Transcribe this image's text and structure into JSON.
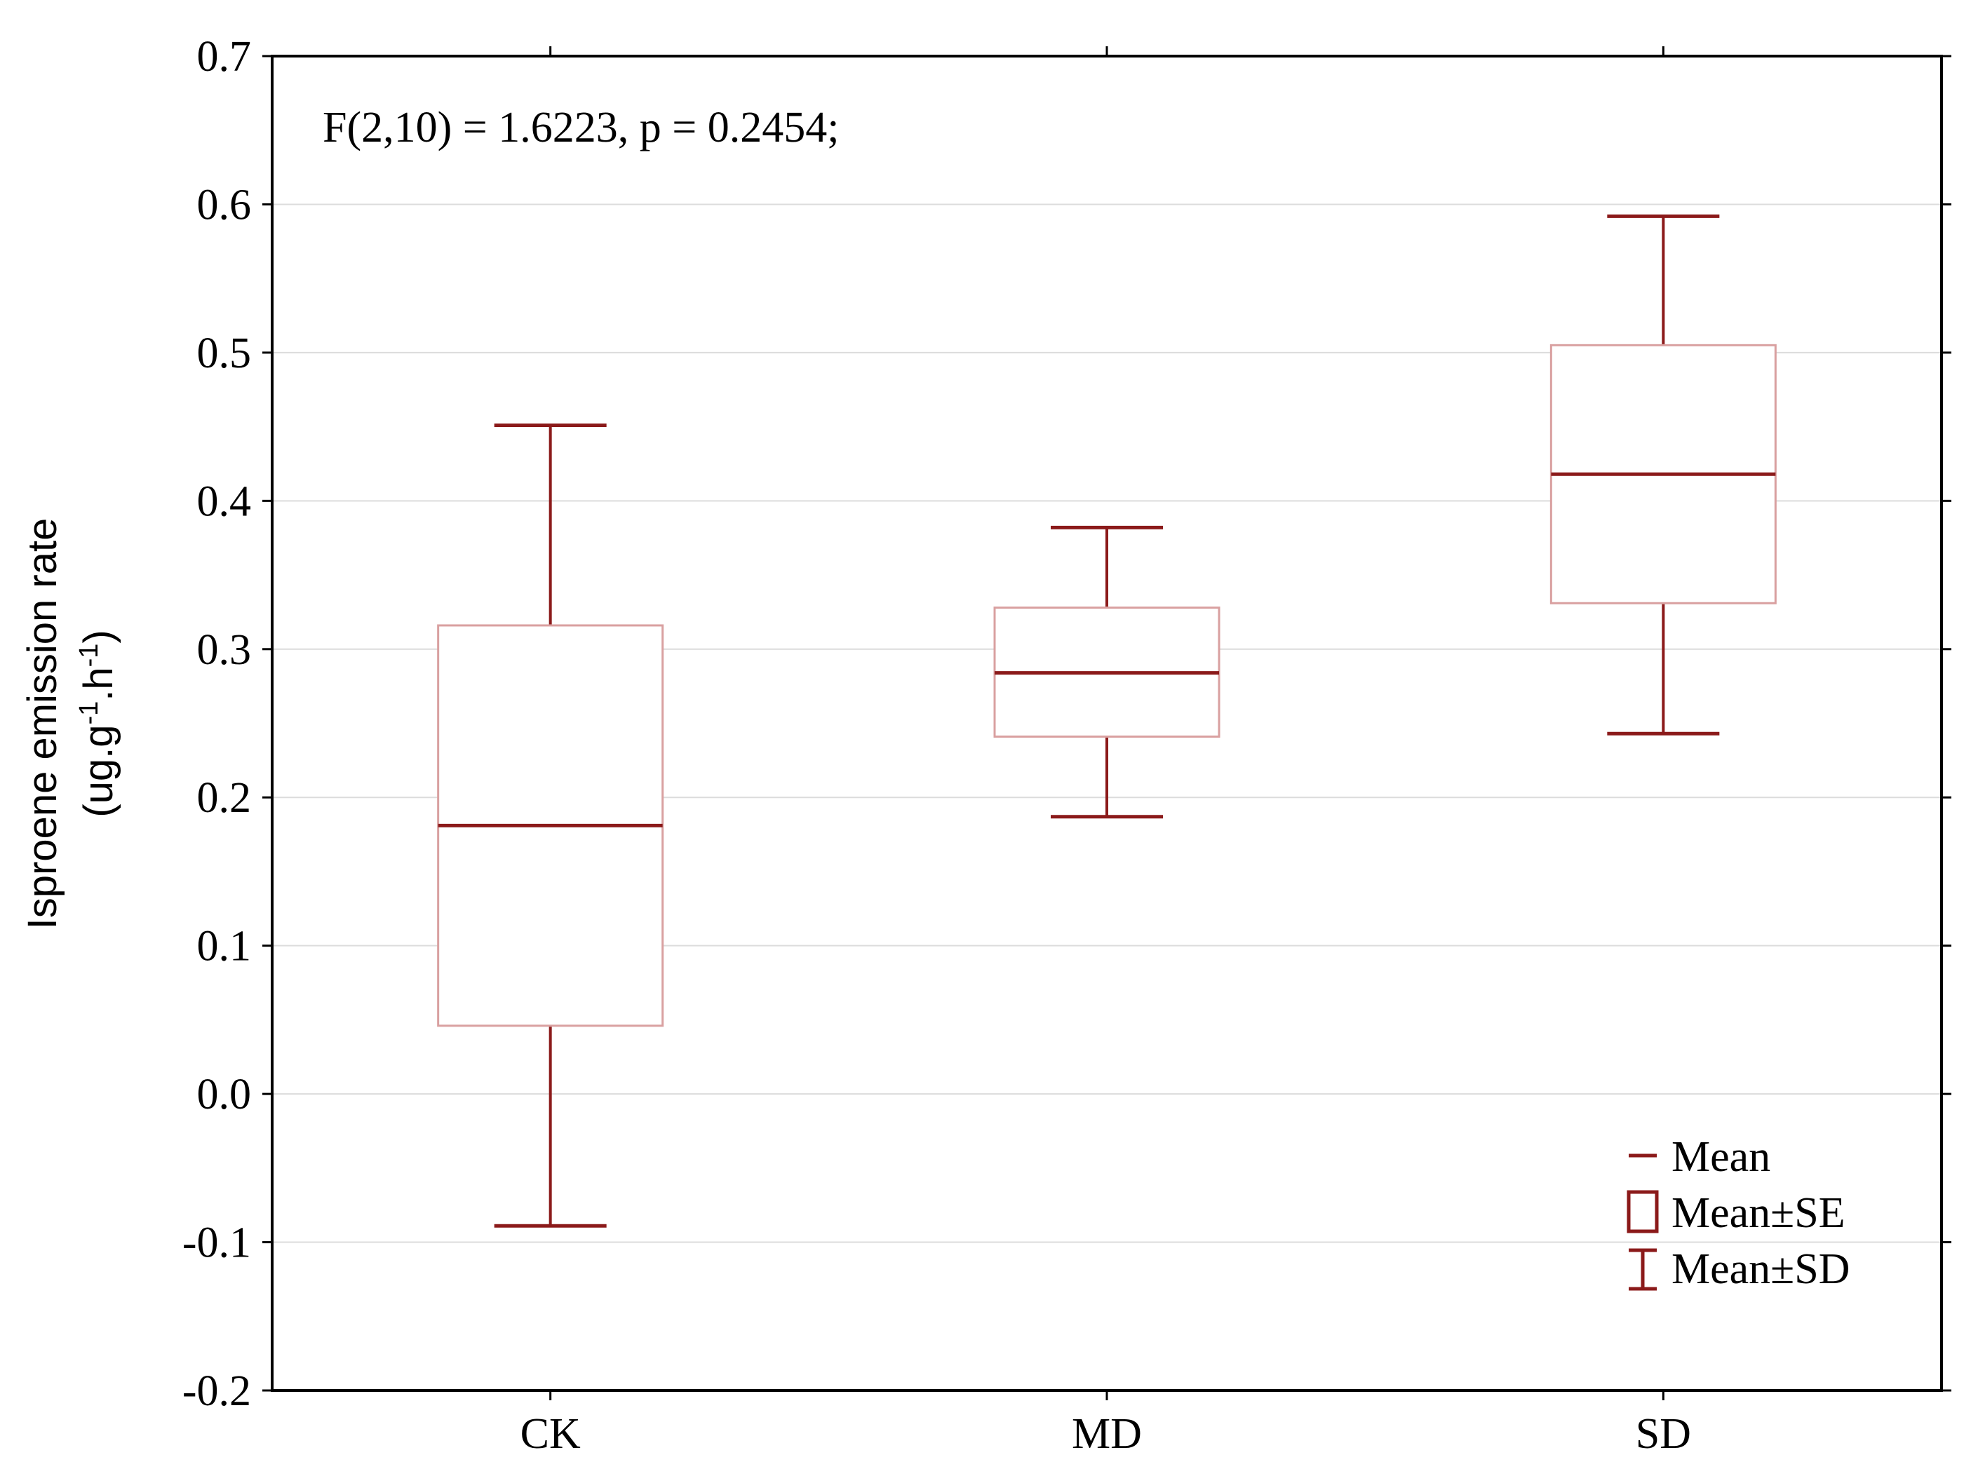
{
  "chart_data": {
    "type": "box",
    "annotation": "F(2,10) = 1.6223, p = 0.2454;",
    "ylabel_line1": "Isproene emission rate",
    "ylabel_line2": "(ug.g",
    "ylabel_line2_mid": ".h",
    "ylabel_line2_end": ")",
    "ylabel_sup": "-1",
    "xlabel": "",
    "ylim": [
      -0.2,
      0.7
    ],
    "y_ticks": [
      "-0.2",
      "-0.1",
      "0.0",
      "0.1",
      "0.2",
      "0.3",
      "0.4",
      "0.5",
      "0.6",
      "0.7"
    ],
    "y_tick_values": [
      -0.2,
      -0.1,
      0.0,
      0.1,
      0.2,
      0.3,
      0.4,
      0.5,
      0.6,
      0.7
    ],
    "grid": true,
    "categories": [
      "CK",
      "MD",
      "SD"
    ],
    "series": [
      {
        "category": "CK",
        "mean": 0.181,
        "se_low": 0.046,
        "se_high": 0.316,
        "sd_low": -0.089,
        "sd_high": 0.451
      },
      {
        "category": "MD",
        "mean": 0.284,
        "se_low": 0.241,
        "se_high": 0.328,
        "sd_low": 0.187,
        "sd_high": 0.382
      },
      {
        "category": "SD",
        "mean": 0.418,
        "se_low": 0.331,
        "se_high": 0.505,
        "sd_low": 0.243,
        "sd_high": 0.592
      }
    ],
    "legend": {
      "position": "bottom-right",
      "items": [
        "Mean",
        "Mean±SE",
        "Mean±SD"
      ]
    },
    "colors": {
      "line": "#8b1a1a",
      "box": "#d9a0a0",
      "grid": "#dcdcdc",
      "axis": "#000000"
    }
  }
}
